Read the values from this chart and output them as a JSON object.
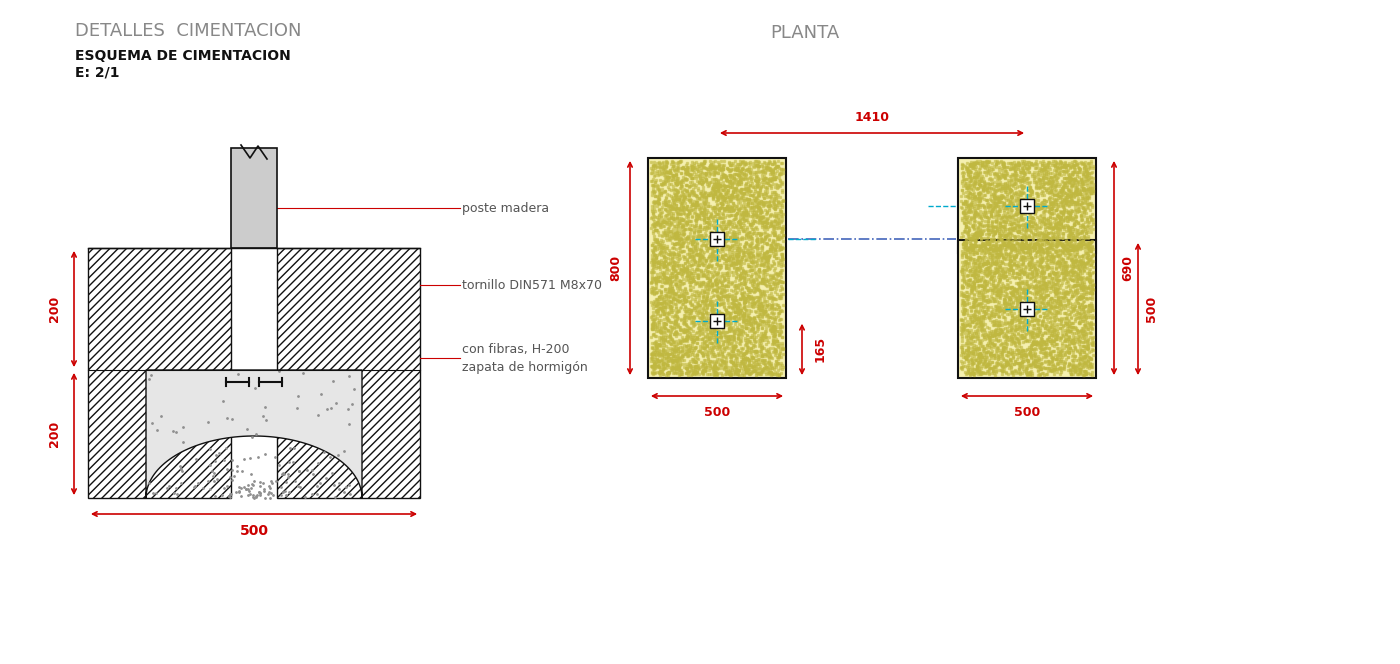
{
  "bg_color": "#ffffff",
  "title_main": "DETALLES  CIMENTACION",
  "title_main_color": "#888888",
  "title_main_fontsize": 13,
  "subtitle1": "ESQUEMA DE CIMENTACION",
  "subtitle1_scale": "E: 2/1",
  "subtitle_fontsize": 10,
  "planta_title": "PLANTA",
  "planta_title_color": "#888888",
  "planta_title_fontsize": 13,
  "red": "#cc0000",
  "black": "#111111",
  "gray_text": "#555555",
  "yellow_fill": "#f5f0b0",
  "cyan_dash": "#00aacc",
  "blue_dash": "#4466bb"
}
